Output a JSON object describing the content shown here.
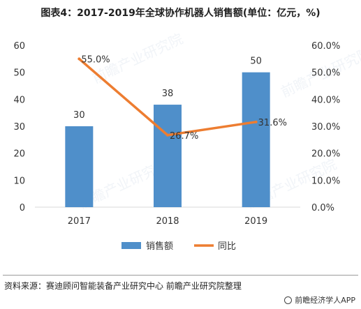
{
  "title": "图表4：2017-2019年全球协作机器人销售额(单位：亿元，%)",
  "source": "资料来源：赛迪顾问智能装备产业研究中心 前瞻产业研究院整理",
  "brand": "前瞻经济学人APP",
  "watermark": "前瞻产业研究院",
  "colors": {
    "bar": "#4f8fca",
    "line": "#ed7d31",
    "axis": "#d9d9d9",
    "text": "#333333"
  },
  "chart_data": {
    "type": "bar",
    "categories": [
      "2017",
      "2018",
      "2019"
    ],
    "series": [
      {
        "name": "销售额",
        "type": "bar",
        "axis": "left",
        "values": [
          30,
          38,
          50
        ],
        "labels": [
          "30",
          "38",
          "50"
        ]
      },
      {
        "name": "同比",
        "type": "line",
        "axis": "right",
        "values": [
          55.0,
          26.7,
          31.6
        ],
        "labels": [
          "55.0%",
          "26.7%",
          "31.6%"
        ]
      }
    ],
    "ylim": [
      0,
      60
    ],
    "yticks": [
      "0",
      "10",
      "20",
      "30",
      "40",
      "50",
      "60"
    ],
    "y2lim": [
      0,
      60
    ],
    "y2ticks": [
      "0.0%",
      "10.0%",
      "20.0%",
      "30.0%",
      "40.0%",
      "50.0%",
      "60.0%"
    ],
    "legend_position": "bottom",
    "grid": false
  }
}
